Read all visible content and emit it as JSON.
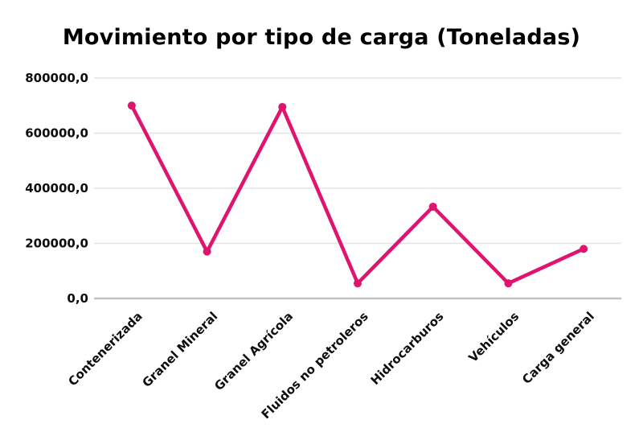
{
  "page": {
    "background_color": "#ffffff"
  },
  "chart": {
    "title": "Movimiento por tipo de carga (Toneladas)"
  },
  "chart_data": {
    "type": "line",
    "title": "Movimiento por tipo de carga (Toneladas)",
    "categories": [
      "Contenerizada",
      "Granel Mineral",
      "Granel Agrícola",
      "Fluidos no petroleros",
      "Hidrocarburos",
      "Vehículos",
      "Carga general"
    ],
    "series": [
      {
        "name": "Toneladas",
        "values": [
          700000,
          170000,
          695000,
          55000,
          333000,
          55000,
          180000
        ]
      }
    ],
    "xlabel": "",
    "ylabel": "",
    "ylim": [
      0,
      800000
    ],
    "ytick_step": 200000,
    "ytick_labels": [
      "0,0",
      "200000,0",
      "400000,0",
      "600000,0",
      "800000,0"
    ],
    "ytick_values": [
      0,
      200000,
      400000,
      600000,
      800000
    ],
    "grid": true,
    "legend_position": "none",
    "marker": "circle",
    "x_labels_rotation_deg": 45
  },
  "colors": {
    "line": "#e0136f",
    "marker": "#e0136f",
    "gridline": "#e3e3e3",
    "axis_line": "#c2c2c2",
    "text": "#0d0d0d",
    "background": "#ffffff"
  }
}
